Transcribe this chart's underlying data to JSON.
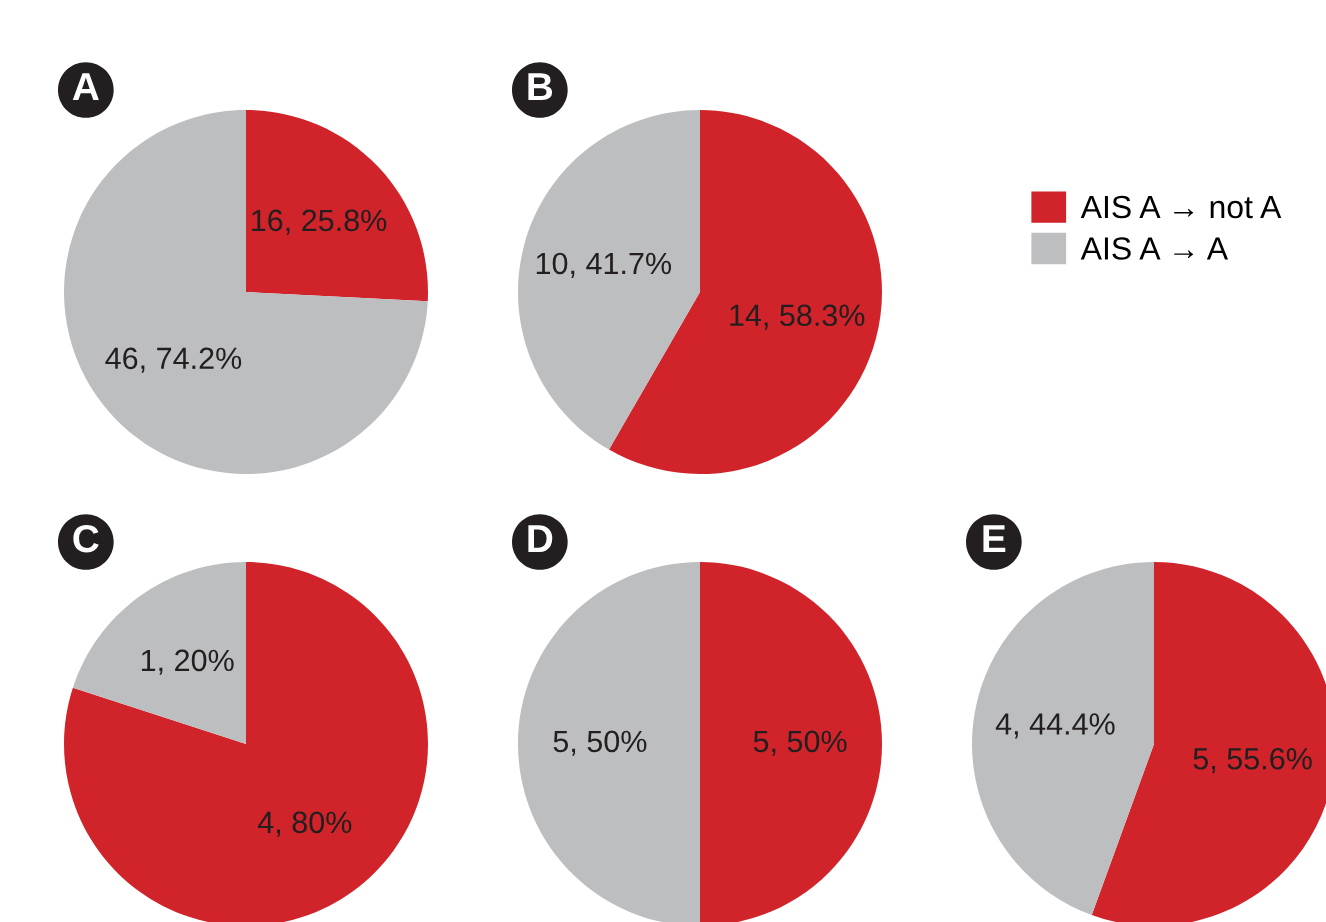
{
  "chart_data": [
    {
      "type": "pie",
      "title": "A",
      "categories": [
        "AIS A → not A",
        "AIS A → A"
      ],
      "values": [
        16,
        46
      ],
      "value_labels": [
        "16, 25.8%",
        "46, 74.2%"
      ],
      "colors": [
        "#d0232a",
        "#bcbec0"
      ],
      "legend": "right"
    },
    {
      "type": "pie",
      "title": "B",
      "categories": [
        null,
        null
      ],
      "values": [
        14,
        10
      ],
      "value_labels": [
        "14, 58.3%",
        "10, 41.7%"
      ],
      "colors": [
        "#d0232a",
        "#bcbec0"
      ],
      "legend": false
    },
    {
      "type": "pie",
      "title": "C",
      "categories": [
        null,
        null
      ],
      "values": [
        4,
        1
      ],
      "value_labels": [
        "4, 80%",
        "1, 20%"
      ],
      "colors": [
        "#d0232a",
        "#bcbec0"
      ],
      "legend": false
    },
    {
      "type": "pie",
      "title": "D",
      "categories": [
        null,
        null
      ],
      "values": [
        5,
        5
      ],
      "value_labels": [
        "5, 50%",
        "5, 50%"
      ],
      "colors": [
        "#d0232a",
        "#bcbec0"
      ],
      "legend": false
    },
    {
      "type": "pie",
      "title": "E",
      "categories": [
        null,
        null
      ],
      "values": [
        5,
        4
      ],
      "value_labels": [
        "5, 55.6%",
        "4, 44.4%"
      ],
      "colors": [
        "#d0232a",
        "#bcbec0"
      ],
      "legend": false
    }
  ]
}
